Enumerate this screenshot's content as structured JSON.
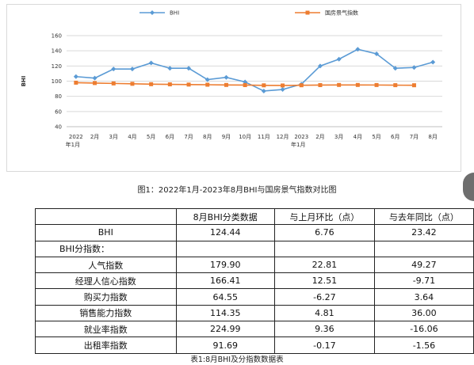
{
  "chart_data": {
    "type": "line",
    "categories": [
      {
        "top": "2022",
        "bottom": "年1月"
      },
      {
        "top": "2月",
        "bottom": ""
      },
      {
        "top": "3月",
        "bottom": ""
      },
      {
        "top": "4月",
        "bottom": ""
      },
      {
        "top": "5月",
        "bottom": ""
      },
      {
        "top": "6月",
        "bottom": ""
      },
      {
        "top": "7月",
        "bottom": ""
      },
      {
        "top": "8月",
        "bottom": ""
      },
      {
        "top": "9月",
        "bottom": ""
      },
      {
        "top": "10月",
        "bottom": ""
      },
      {
        "top": "11月",
        "bottom": ""
      },
      {
        "top": "12月",
        "bottom": ""
      },
      {
        "top": "2023",
        "bottom": "年1月"
      },
      {
        "top": "2月",
        "bottom": ""
      },
      {
        "top": "3月",
        "bottom": ""
      },
      {
        "top": "4月",
        "bottom": ""
      },
      {
        "top": "5月",
        "bottom": ""
      },
      {
        "top": "6月",
        "bottom": ""
      },
      {
        "top": "7月",
        "bottom": ""
      },
      {
        "top": "8月",
        "bottom": ""
      }
    ],
    "series": [
      {
        "name": "BHI",
        "color": "#5b9bd5",
        "marker": "diamond",
        "values": [
          106,
          104,
          116,
          116,
          124,
          117,
          117,
          102,
          105,
          99,
          87,
          89,
          96,
          120,
          129,
          142,
          136,
          117,
          118,
          125
        ]
      },
      {
        "name": "国房景气指数",
        "color": "#ed7d31",
        "marker": "square",
        "values": [
          98,
          97.5,
          97,
          96.5,
          96,
          95.8,
          95.5,
          95.3,
          95,
          94.8,
          94.5,
          94.3,
          94.6,
          94.8,
          95,
          95,
          94.9,
          94.7,
          94.6,
          null
        ]
      }
    ],
    "ylabel": "BHI",
    "ylim": [
      40,
      160
    ],
    "yticks": [
      40,
      60,
      80,
      100,
      120,
      140,
      160
    ],
    "grid": true,
    "legend_position": "top"
  },
  "figure_caption": "图1：2022年1月-2023年8月BHI与国房景气指数对比图",
  "table": {
    "headers": [
      "",
      "8月BHI分类数据",
      "与上月环比（点）",
      "与去年同比（点）"
    ],
    "rows": [
      {
        "label": "BHI",
        "v1": "124.44",
        "v2": "6.76",
        "v3": "23.42",
        "style": "center"
      },
      {
        "label": "BHI分指数：",
        "v1": "",
        "v2": "",
        "v3": "",
        "style": "lead"
      },
      {
        "label": "人气指数",
        "v1": "179.90",
        "v2": "22.81",
        "v3": "49.27",
        "style": "center"
      },
      {
        "label": "经理人信心指数",
        "v1": "166.41",
        "v2": "12.51",
        "v3": "-9.71",
        "style": "center"
      },
      {
        "label": "购买力指数",
        "v1": "64.55",
        "v2": "-6.27",
        "v3": "3.64",
        "style": "center"
      },
      {
        "label": "销售能力指数",
        "v1": "114.35",
        "v2": "4.81",
        "v3": "36.00",
        "style": "center"
      },
      {
        "label": "就业率指数",
        "v1": "224.99",
        "v2": "9.36",
        "v3": "-16.06",
        "style": "center"
      },
      {
        "label": "出租率指数",
        "v1": "91.69",
        "v2": "-0.17",
        "v3": "-1.56",
        "style": "center"
      }
    ]
  },
  "table_caption": "表1:8月BHI及分指数数据表"
}
